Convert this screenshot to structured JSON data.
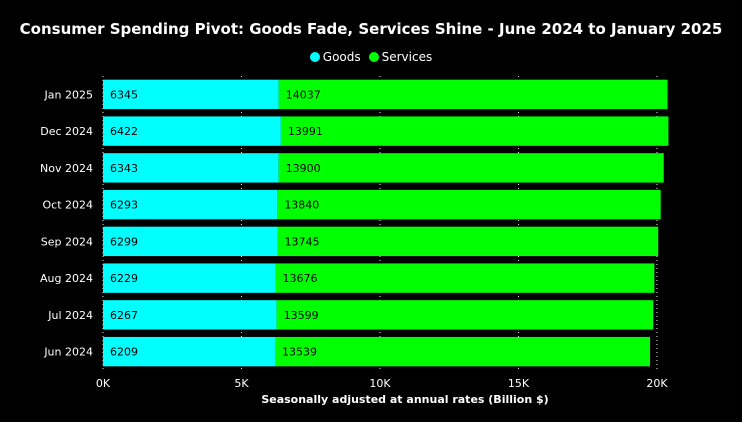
{
  "chart_data": {
    "type": "bar",
    "orientation": "horizontal",
    "stacked": true,
    "title": "Consumer Spending Pivot: Goods Fade, Services Shine - June 2024 to January 2025",
    "xlabel": "Seasonally adjusted at annual rates (Billion $)",
    "ylabel": "",
    "xlim": [
      0,
      20000
    ],
    "x_ticks": [
      "0K",
      "5K",
      "10K",
      "15K",
      "20K"
    ],
    "categories": [
      "Jan 2025",
      "Dec 2024",
      "Nov 2024",
      "Oct 2024",
      "Sep 2024",
      "Aug 2024",
      "Jul 2024",
      "Jun 2024"
    ],
    "series": [
      {
        "name": "Goods",
        "color": "#00ffff",
        "values": [
          6345,
          6422,
          6343,
          6293,
          6299,
          6229,
          6267,
          6209
        ]
      },
      {
        "name": "Services",
        "color": "#00ff00",
        "values": [
          14037,
          13991,
          13900,
          13840,
          13745,
          13676,
          13599,
          13539
        ]
      }
    ],
    "legend": "top-center",
    "grid": "vertical-dotted",
    "data_labels": true
  }
}
